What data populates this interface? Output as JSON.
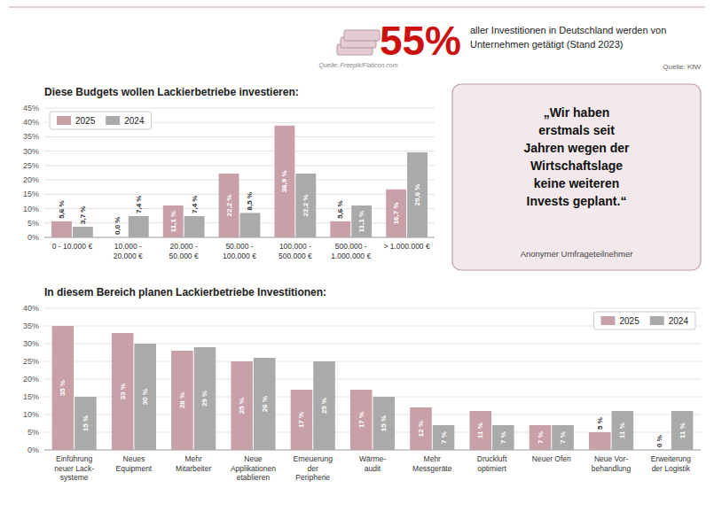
{
  "chart_data": [
    {
      "type": "bar",
      "title": "Diese Budgets wollen Lackierbetriebe investieren:",
      "categories": [
        "0 - 10.000 €",
        "10.000 -\n20.000 €",
        "20.000 -\n50.000 €",
        "50.000 -\n100.000 €",
        "100.000 -\n500.000 €",
        "500.000 -\n1.000.000 €",
        "> 1.000.000 €"
      ],
      "series": [
        {
          "name": "2025",
          "color": "#c9a0a8",
          "values": [
            5.6,
            0.0,
            11.1,
            22.2,
            38.9,
            5.6,
            16.7
          ],
          "value_labels": [
            "5,6 %",
            "0,0 %",
            "11,1 %",
            "22,2 %",
            "38,9 %",
            "5,6 %",
            "16,7 %"
          ]
        },
        {
          "name": "2024",
          "color": "#aaaaaa",
          "values": [
            3.7,
            7.4,
            7.4,
            8.5,
            22.2,
            11.1,
            29.6
          ],
          "value_labels": [
            "3,7 %",
            "7,4 %",
            "7,4 %",
            "8,5 %",
            "22,2 %",
            "11,1 %",
            "29,6 %"
          ]
        }
      ],
      "ylim": [
        0,
        45
      ],
      "yticks": [
        {
          "value": 0,
          "label": "0%"
        },
        {
          "value": 5,
          "label": "5%"
        },
        {
          "value": 10,
          "label": "10%"
        },
        {
          "value": 15,
          "label": "15%"
        },
        {
          "value": 20,
          "label": "20%"
        },
        {
          "value": 25,
          "label": "25%"
        },
        {
          "value": 30,
          "label": "30%"
        },
        {
          "value": 35,
          "label": "35%"
        },
        {
          "value": 40,
          "label": "40%"
        },
        {
          "value": 45,
          "label": "45%"
        }
      ],
      "grid": true,
      "legend": "upper left",
      "data_labels": true
    },
    {
      "type": "bar",
      "title": "In diesem Bereich planen Lackierbetriebe Investitionen:",
      "categories": [
        "Einführung\nneuer Lack-\nsysteme",
        "Neues\nEquipment",
        "Mehr\nMitarbeiter",
        "Neue\nApplikationen\netablieren",
        "Erneuerung\nder\nPeripherie",
        "Wärme-\naudit",
        "Mehr\nMessgeräte",
        "Druckluft\noptimiert",
        "Neuer Ofen",
        "Neue Vor-\nbehandlung",
        "Erweiterung\nder Logistik"
      ],
      "series": [
        {
          "name": "2025",
          "color": "#c9a0a8",
          "values": [
            35,
            33,
            28,
            25,
            17,
            17,
            12,
            11,
            7,
            5,
            0
          ],
          "value_labels": [
            "35 %",
            "33 %",
            "28 %",
            "25 %",
            "17 %",
            "17 %",
            "12 %",
            "11 %",
            "7 %",
            "5 %",
            "0 %"
          ]
        },
        {
          "name": "2024",
          "color": "#aaaaaa",
          "values": [
            15,
            30,
            29,
            26,
            25,
            15,
            7,
            7,
            7,
            11,
            11
          ],
          "value_labels": [
            "15 %",
            "30 %",
            "29 %",
            "26 %",
            "25 %",
            "15 %",
            "7 %",
            "7 %",
            "7 %",
            "11 %",
            "11 %"
          ]
        }
      ],
      "ylim": [
        0,
        40
      ],
      "yticks": [
        {
          "value": 0,
          "label": "0%"
        },
        {
          "value": 5,
          "label": "5%"
        },
        {
          "value": 10,
          "label": "10%"
        },
        {
          "value": 15,
          "label": "15%"
        },
        {
          "value": 20,
          "label": "20%"
        },
        {
          "value": 25,
          "label": "25%"
        },
        {
          "value": 30,
          "label": "30%"
        },
        {
          "value": 35,
          "label": "35%"
        },
        {
          "value": 40,
          "label": "40%"
        }
      ],
      "grid": true,
      "legend": "upper right",
      "data_labels": true
    }
  ],
  "annotations": [
    "55%",
    "aller Investitionen in Deutschland werden von",
    "Unternehmen getätigt (Stand 2023)",
    "Quelle: KfW",
    "Quelle: Freepik/Flaticon.com",
    "„Wir haben\nerstmals seit\nJahren wegen der\nWirtschaftslage\nkeine weiteren\nInvests geplant.“",
    "Anonymer Umfrageteilnehmer"
  ]
}
